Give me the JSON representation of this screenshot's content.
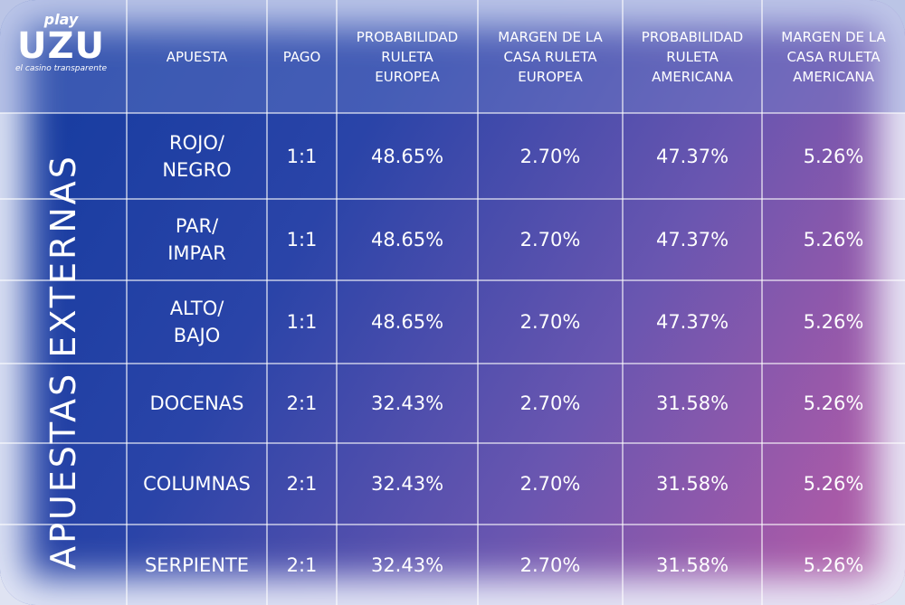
{
  "logo": {
    "top": "play",
    "brand": "UZU",
    "tagline": "el casino transparente"
  },
  "side_label": "APUESTAS EXTERNAS",
  "table": {
    "headers": [
      [
        "APUESTA"
      ],
      [
        "PAGO"
      ],
      [
        "PROBABILIDAD",
        "RULETA",
        "EUROPEA"
      ],
      [
        "MARGEN DE LA",
        "CASA RULETA",
        "EUROPEA"
      ],
      [
        "PROBABILIDAD",
        "RULETA",
        "AMERICANA"
      ],
      [
        "MARGEN DE LA",
        "CASA RULETA",
        "AMERICANA"
      ]
    ],
    "rows": [
      [
        [
          "ROJO/",
          "NEGRO"
        ],
        "1:1",
        "48.65%",
        "2.70%",
        "47.37%",
        "5.26%"
      ],
      [
        [
          "PAR/",
          "IMPAR"
        ],
        "1:1",
        "48.65%",
        "2.70%",
        "47.37%",
        "5.26%"
      ],
      [
        [
          "ALTO/",
          "BAJO"
        ],
        "1:1",
        "48.65%",
        "2.70%",
        "47.37%",
        "5.26%"
      ],
      [
        [
          "DOCENAS"
        ],
        "2:1",
        "32.43%",
        "2.70%",
        "31.58%",
        "5.26%"
      ],
      [
        [
          "COLUMNAS"
        ],
        "2:1",
        "32.43%",
        "2.70%",
        "31.58%",
        "5.26%"
      ],
      [
        [
          "SERPIENTE"
        ],
        "2:1",
        "32.43%",
        "2.70%",
        "31.58%",
        "5.26%"
      ]
    ]
  }
}
